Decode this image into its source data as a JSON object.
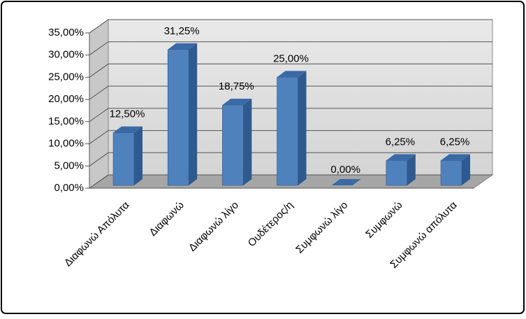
{
  "chart_data": {
    "type": "bar3d",
    "categories": [
      "Διαφωνώ Απόλυτα",
      "Διαφωνώ",
      "Διαφωνώ λίγο",
      "Ουδέτερος/η",
      "Συμφωνώ λίγο",
      "Συμφωνώ",
      "Συμφωνώ απόλυτα"
    ],
    "values": [
      12.5,
      31.25,
      18.75,
      25,
      0,
      6.25,
      6.25
    ],
    "value_labels": [
      "12,50%",
      "31,25%",
      "18,75%",
      "25,00%",
      "0,00%",
      "6,25%",
      "6,25%"
    ],
    "color": "#4f81bd",
    "ylim": [
      0,
      35
    ],
    "yticks": [
      {
        "value": 0,
        "label": "0,00%"
      },
      {
        "value": 5,
        "label": "5,00%"
      },
      {
        "value": 10,
        "label": "10,00%"
      },
      {
        "value": 15,
        "label": "15,00%"
      },
      {
        "value": 20,
        "label": "20,00%"
      },
      {
        "value": 25,
        "label": "25,00%"
      },
      {
        "value": 30,
        "label": "30,00%"
      },
      {
        "value": 35,
        "label": "35,00%"
      }
    ],
    "grid": true
  }
}
